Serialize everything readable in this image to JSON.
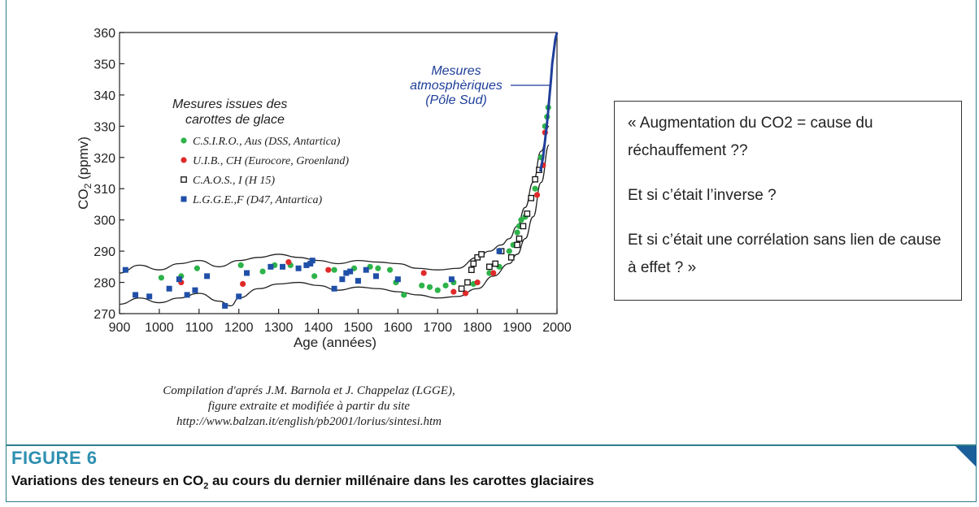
{
  "figure": {
    "number": "FIGURE 6",
    "caption_before": "Variations des teneurs en CO",
    "caption_sub": "2",
    "caption_after": " au cours du dernier millénaire dans les carottes glaciaires",
    "accent_color": "#2e8fb0"
  },
  "quote": {
    "line1": "« Augmentation du CO2 = cause du réchauffement ??",
    "line2": "Et si c’était l’inverse ?",
    "line3": "Et si c’était une corrélation sans lien de cause à effet ? »"
  },
  "credit": {
    "line1": "Compilation d'aprés J.M. Barnola et J. Chappelaz (LGGE),",
    "line2": "figure extraite et modifiée à partir du site",
    "line3": "http://www.balzan.it/english/pb2001/lorius/sintesi.htm"
  },
  "chart_data": {
    "type": "scatter",
    "xlabel": "Age (années)",
    "ylabel_main": "CO",
    "ylabel_sub": "2",
    "ylabel_unit": " (ppmv)",
    "xlim": [
      900,
      2000
    ],
    "ylim": [
      270,
      360
    ],
    "xticks": [
      900,
      1000,
      1100,
      1200,
      1300,
      1400,
      1500,
      1600,
      1700,
      1800,
      1900,
      2000
    ],
    "yticks": [
      270,
      280,
      290,
      300,
      310,
      320,
      330,
      340,
      350,
      360
    ],
    "legend_title_line1": "Mesures issues des",
    "legend_title_line2": "carottes de glace",
    "legend_position": "top-left",
    "atmos_label_line1": "Mesures",
    "atmos_label_line2": "atmosphèriques",
    "atmos_label_line3": "(Pôle Sud)",
    "atmos_color": "#1f3f9a",
    "envelope_upper": [
      [
        900,
        283
      ],
      [
        950,
        285.5
      ],
      [
        1000,
        284
      ],
      [
        1050,
        286
      ],
      [
        1100,
        287
      ],
      [
        1150,
        285
      ],
      [
        1200,
        287
      ],
      [
        1250,
        288
      ],
      [
        1300,
        289
      ],
      [
        1350,
        288
      ],
      [
        1400,
        287
      ],
      [
        1450,
        286
      ],
      [
        1500,
        287
      ],
      [
        1550,
        286.5
      ],
      [
        1600,
        286
      ],
      [
        1650,
        284.5
      ],
      [
        1700,
        284
      ],
      [
        1750,
        284.5
      ],
      [
        1800,
        288
      ],
      [
        1830,
        290
      ],
      [
        1860,
        292
      ],
      [
        1880,
        294
      ],
      [
        1900,
        298
      ],
      [
        1920,
        304
      ],
      [
        1940,
        312
      ],
      [
        1960,
        322
      ],
      [
        1980,
        330
      ]
    ],
    "envelope_lower": [
      [
        900,
        273
      ],
      [
        950,
        275
      ],
      [
        1000,
        273.5
      ],
      [
        1050,
        275
      ],
      [
        1100,
        276.5
      ],
      [
        1150,
        274
      ],
      [
        1180,
        272.5
      ],
      [
        1200,
        275
      ],
      [
        1250,
        278
      ],
      [
        1300,
        279.5
      ],
      [
        1350,
        280
      ],
      [
        1400,
        279
      ],
      [
        1450,
        277.5
      ],
      [
        1500,
        278.5
      ],
      [
        1550,
        278
      ],
      [
        1600,
        277
      ],
      [
        1650,
        276
      ],
      [
        1700,
        275
      ],
      [
        1750,
        275.5
      ],
      [
        1800,
        278
      ],
      [
        1840,
        282
      ],
      [
        1880,
        286
      ],
      [
        1900,
        289
      ],
      [
        1920,
        294
      ],
      [
        1940,
        301
      ],
      [
        1960,
        312
      ],
      [
        1980,
        324
      ]
    ],
    "atmos_series": [
      [
        1958,
        315.5
      ],
      [
        1965,
        320
      ],
      [
        1970,
        325.5
      ],
      [
        1975,
        331
      ],
      [
        1978,
        335
      ],
      [
        1980,
        338
      ],
      [
        1985,
        345
      ],
      [
        1988,
        350
      ],
      [
        1992,
        354
      ],
      [
        1996,
        358
      ],
      [
        2000,
        360
      ]
    ],
    "series": [
      {
        "name": "C.S.I.R.O., Aus (DSS, Antartica)",
        "marker": "circle",
        "color": "#2db34a",
        "points": [
          [
            1005,
            281.5
          ],
          [
            1055,
            282
          ],
          [
            1095,
            284.5
          ],
          [
            1205,
            285.5
          ],
          [
            1260,
            283.5
          ],
          [
            1290,
            285.5
          ],
          [
            1330,
            285.5
          ],
          [
            1390,
            282
          ],
          [
            1440,
            284
          ],
          [
            1490,
            284.5
          ],
          [
            1530,
            285
          ],
          [
            1550,
            284.5
          ],
          [
            1580,
            284
          ],
          [
            1595,
            280
          ],
          [
            1615,
            276
          ],
          [
            1660,
            279
          ],
          [
            1680,
            278.5
          ],
          [
            1700,
            277.5
          ],
          [
            1720,
            279
          ],
          [
            1740,
            280
          ],
          [
            1790,
            279.5
          ],
          [
            1830,
            283
          ],
          [
            1855,
            285
          ],
          [
            1880,
            290
          ],
          [
            1890,
            292
          ],
          [
            1900,
            296
          ],
          [
            1905,
            298
          ],
          [
            1910,
            300
          ],
          [
            1920,
            301
          ],
          [
            1945,
            310
          ],
          [
            1960,
            320
          ],
          [
            1970,
            330
          ],
          [
            1975,
            333
          ],
          [
            1978,
            336
          ]
        ]
      },
      {
        "name": "U.I.B., CH (Eurocore, Groenland)",
        "marker": "circle",
        "color": "#e02a2a",
        "points": [
          [
            1055,
            280
          ],
          [
            1210,
            279.5
          ],
          [
            1325,
            286.5
          ],
          [
            1425,
            284
          ],
          [
            1665,
            283
          ],
          [
            1740,
            277
          ],
          [
            1770,
            276.5
          ],
          [
            1800,
            280
          ],
          [
            1840,
            283
          ],
          [
            1950,
            308
          ],
          [
            1965,
            317.5
          ],
          [
            1970,
            328
          ]
        ]
      },
      {
        "name": "C.A.O.S., I (H 15)",
        "marker": "open-square",
        "color": "#111111",
        "points": [
          [
            1760,
            278
          ],
          [
            1775,
            280
          ],
          [
            1785,
            284
          ],
          [
            1790,
            286
          ],
          [
            1800,
            288
          ],
          [
            1810,
            289
          ],
          [
            1830,
            285
          ],
          [
            1845,
            286
          ],
          [
            1860,
            290
          ],
          [
            1885,
            288
          ],
          [
            1900,
            292
          ],
          [
            1905,
            294
          ],
          [
            1915,
            298
          ],
          [
            1925,
            302
          ],
          [
            1935,
            307
          ],
          [
            1945,
            313
          ],
          [
            1955,
            316
          ]
        ]
      },
      {
        "name": "L.G.G.E.,F (D47, Antartica)",
        "marker": "square",
        "color": "#1f4fa8",
        "points": [
          [
            915,
            284
          ],
          [
            940,
            276
          ],
          [
            975,
            275.5
          ],
          [
            1025,
            278
          ],
          [
            1050,
            281
          ],
          [
            1070,
            276
          ],
          [
            1090,
            277.5
          ],
          [
            1120,
            282
          ],
          [
            1165,
            272.5
          ],
          [
            1200,
            275.5
          ],
          [
            1220,
            283
          ],
          [
            1280,
            285
          ],
          [
            1310,
            285
          ],
          [
            1350,
            284.5
          ],
          [
            1370,
            285.5
          ],
          [
            1380,
            286
          ],
          [
            1385,
            287
          ],
          [
            1440,
            278
          ],
          [
            1460,
            281
          ],
          [
            1470,
            283
          ],
          [
            1480,
            283.5
          ],
          [
            1500,
            280.5
          ],
          [
            1520,
            284
          ],
          [
            1545,
            282
          ],
          [
            1600,
            281
          ],
          [
            1735,
            281
          ],
          [
            1855,
            290
          ]
        ]
      }
    ]
  }
}
